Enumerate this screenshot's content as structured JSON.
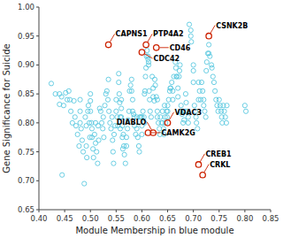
{
  "chart_data": {
    "type": "scatter",
    "xlabel": "Module Membership in blue module",
    "ylabel": "Gene Significance for Suicide",
    "xlim": [
      0.4,
      0.85
    ],
    "ylim": [
      0.65,
      1.0
    ],
    "xticks": [
      {
        "value": 0.4,
        "label": "0.40"
      },
      0.45,
      {
        "value": 0.5,
        "label": "0.50"
      },
      0.55,
      {
        "value": 0.6,
        "label": "0.60"
      },
      0.65,
      {
        "value": 0.7,
        "label": "0.70"
      },
      0.75,
      {
        "value": 0.8,
        "label": "0.80"
      },
      0.85
    ],
    "yticks": [
      0.65,
      {
        "value": 0.7,
        "label": "0.70"
      },
      0.75,
      {
        "value": 0.8,
        "label": "0.80"
      },
      0.85,
      {
        "value": 0.9,
        "label": "0.90"
      },
      0.95,
      {
        "value": 1.0,
        "label": "1.00"
      }
    ],
    "series": [
      {
        "color": "#5bc8e0",
        "x": [
          0.424,
          0.432,
          0.44,
          0.44,
          0.444,
          0.445,
          0.448,
          0.452,
          0.455,
          0.458,
          0.46,
          0.462,
          0.465,
          0.468,
          0.47,
          0.472,
          0.475,
          0.478,
          0.48,
          0.48,
          0.48,
          0.482,
          0.484,
          0.486,
          0.488,
          0.49,
          0.492,
          0.492,
          0.493,
          0.495,
          0.496,
          0.498,
          0.499,
          0.5,
          0.5,
          0.5,
          0.502,
          0.503,
          0.503,
          0.505,
          0.506,
          0.508,
          0.51,
          0.51,
          0.512,
          0.514,
          0.515,
          0.516,
          0.518,
          0.52,
          0.522,
          0.524,
          0.525,
          0.526,
          0.528,
          0.53,
          0.532,
          0.534,
          0.535,
          0.536,
          0.538,
          0.54,
          0.542,
          0.543,
          0.544,
          0.545,
          0.546,
          0.548,
          0.55,
          0.55,
          0.552,
          0.553,
          0.555,
          0.555,
          0.556,
          0.557,
          0.558,
          0.558,
          0.56,
          0.56,
          0.56,
          0.562,
          0.562,
          0.563,
          0.564,
          0.565,
          0.566,
          0.568,
          0.57,
          0.57,
          0.572,
          0.573,
          0.575,
          0.576,
          0.578,
          0.58,
          0.58,
          0.582,
          0.582,
          0.584,
          0.585,
          0.586,
          0.588,
          0.59,
          0.59,
          0.592,
          0.594,
          0.595,
          0.596,
          0.598,
          0.6,
          0.6,
          0.6,
          0.602,
          0.604,
          0.605,
          0.605,
          0.606,
          0.607,
          0.608,
          0.609,
          0.61,
          0.612,
          0.612,
          0.613,
          0.613,
          0.614,
          0.615,
          0.616,
          0.618,
          0.62,
          0.622,
          0.622,
          0.624,
          0.625,
          0.626,
          0.628,
          0.63,
          0.63,
          0.63,
          0.632,
          0.634,
          0.635,
          0.636,
          0.638,
          0.64,
          0.64,
          0.642,
          0.643,
          0.644,
          0.645,
          0.646,
          0.648,
          0.649,
          0.65,
          0.65,
          0.652,
          0.654,
          0.655,
          0.656,
          0.658,
          0.66,
          0.66,
          0.662,
          0.665,
          0.666,
          0.667,
          0.668,
          0.67,
          0.67,
          0.672,
          0.673,
          0.674,
          0.675,
          0.676,
          0.678,
          0.68,
          0.68,
          0.682,
          0.684,
          0.685,
          0.686,
          0.688,
          0.69,
          0.69,
          0.692,
          0.695,
          0.695,
          0.696,
          0.7,
          0.7,
          0.7,
          0.702,
          0.704,
          0.705,
          0.706,
          0.708,
          0.71,
          0.71,
          0.712,
          0.714,
          0.716,
          0.718,
          0.72,
          0.72,
          0.722,
          0.724,
          0.725,
          0.726,
          0.728,
          0.73,
          0.73,
          0.732,
          0.735,
          0.736,
          0.738,
          0.74,
          0.742,
          0.744,
          0.746,
          0.748,
          0.75,
          0.752,
          0.754,
          0.755,
          0.756,
          0.758,
          0.76,
          0.762,
          0.764,
          0.765,
          0.8,
          0.802
        ],
        "values": [
          0.868,
          0.85,
          0.85,
          0.832,
          0.845,
          0.71,
          0.83,
          0.852,
          0.84,
          0.855,
          0.84,
          0.82,
          0.8,
          0.838,
          0.81,
          0.795,
          0.78,
          0.76,
          0.84,
          0.82,
          0.8,
          0.79,
          0.77,
          0.75,
          0.695,
          0.81,
          0.795,
          0.76,
          0.74,
          0.82,
          0.83,
          0.8,
          0.775,
          0.85,
          0.838,
          0.82,
          0.8,
          0.79,
          0.775,
          0.755,
          0.74,
          0.78,
          0.8,
          0.765,
          0.75,
          0.73,
          0.795,
          0.77,
          0.825,
          0.82,
          0.8,
          0.79,
          0.81,
          0.775,
          0.83,
          0.85,
          0.855,
          0.84,
          0.875,
          0.82,
          0.8,
          0.79,
          0.81,
          0.77,
          0.75,
          0.73,
          0.78,
          0.795,
          0.84,
          0.82,
          0.81,
          0.795,
          0.885,
          0.87,
          0.85,
          0.835,
          0.81,
          0.79,
          0.84,
          0.825,
          0.81,
          0.795,
          0.775,
          0.755,
          0.78,
          0.76,
          0.745,
          0.73,
          0.76,
          0.775,
          0.79,
          0.805,
          0.82,
          0.855,
          0.865,
          0.875,
          0.855,
          0.84,
          0.82,
          0.815,
          0.81,
          0.795,
          0.78,
          0.81,
          0.79,
          0.775,
          0.76,
          0.75,
          0.81,
          0.81,
          0.81,
          0.795,
          0.78,
          0.82,
          0.81,
          0.8,
          0.85,
          0.855,
          0.88,
          0.895,
          0.915,
          0.925,
          0.915,
          0.91,
          0.905,
          0.9,
          0.855,
          0.84,
          0.82,
          0.81,
          0.88,
          0.86,
          0.845,
          0.838,
          0.875,
          0.865,
          0.845,
          0.84,
          0.82,
          0.81,
          0.8,
          0.79,
          0.78,
          0.81,
          0.8,
          0.82,
          0.8,
          0.79,
          0.78,
          0.83,
          0.81,
          0.8,
          0.82,
          0.81,
          0.83,
          0.82,
          0.84,
          0.855,
          0.86,
          0.86,
          0.87,
          0.855,
          0.84,
          0.88,
          0.905,
          0.895,
          0.88,
          0.88,
          0.86,
          0.845,
          0.88,
          0.89,
          0.9,
          0.82,
          0.83,
          0.815,
          0.8,
          0.82,
          0.805,
          0.82,
          0.85,
          0.835,
          0.82,
          0.81,
          0.8,
          0.97,
          0.96,
          0.95,
          0.94,
          0.9,
          0.89,
          0.87,
          0.83,
          0.82,
          0.81,
          0.8,
          0.79,
          0.84,
          0.87,
          0.855,
          0.84,
          0.87,
          0.855,
          0.84,
          0.83,
          0.82,
          0.81,
          0.89,
          0.905,
          0.92,
          0.935,
          0.92,
          0.915,
          0.9,
          0.895,
          0.88,
          0.87,
          0.855,
          0.84,
          0.83,
          0.82,
          0.84,
          0.83,
          0.82,
          0.81,
          0.8,
          0.83,
          0.82,
          0.81,
          0.8,
          0.83,
          0.83,
          0.82
        ]
      },
      {
        "color": "#cc2200",
        "x": [
          0.608,
          0.6,
          0.628,
          0.535,
          0.73,
          0.65,
          0.622,
          0.612,
          0.71,
          0.718
        ],
        "values": [
          0.935,
          0.922,
          0.93,
          0.935,
          0.95,
          0.8,
          0.783,
          0.783,
          0.728,
          0.71
        ]
      }
    ],
    "annotations": [
      {
        "text": "PTP4A2",
        "x": 0.608,
        "y": 0.935
      },
      {
        "text": "CDC42",
        "x": 0.6,
        "y": 0.922
      },
      {
        "text": "CD46",
        "x": 0.628,
        "y": 0.93
      },
      {
        "text": "CAPNS1",
        "x": 0.535,
        "y": 0.935
      },
      {
        "text": "CSNK2B",
        "x": 0.73,
        "y": 0.95
      },
      {
        "text": "VDAC3",
        "x": 0.65,
        "y": 0.8
      },
      {
        "text": "DIABLO",
        "x": 0.622,
        "y": 0.783
      },
      {
        "text": "CAMK2G",
        "x": 0.612,
        "y": 0.783
      },
      {
        "text": "CREB1",
        "x": 0.71,
        "y": 0.728
      },
      {
        "text": "CRKL",
        "x": 0.718,
        "y": 0.71
      }
    ]
  }
}
